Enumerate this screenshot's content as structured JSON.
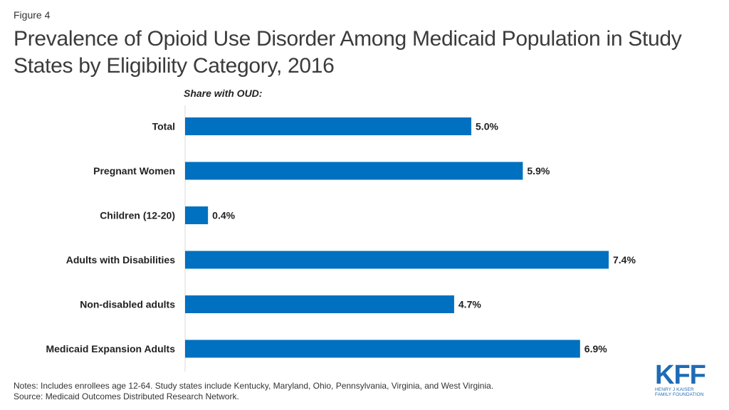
{
  "figure_label": "Figure 4",
  "title": "Prevalence of Opioid Use Disorder Among Medicaid Population in Study States by Eligibility Category, 2016",
  "chart_data": {
    "type": "bar",
    "orientation": "horizontal",
    "subtitle": "Share with OUD:",
    "categories": [
      "Total",
      "Pregnant Women",
      "Children (12-20)",
      "Adults with Disabilities",
      "Non-disabled adults",
      "Medicaid Expansion Adults"
    ],
    "values": [
      5.0,
      5.9,
      0.4,
      7.4,
      4.7,
      6.9
    ],
    "value_labels": [
      "5.0%",
      "5.9%",
      "0.4%",
      "7.4%",
      "4.7%",
      "6.9%"
    ],
    "xlim": [
      0,
      8
    ],
    "unit": "%",
    "bar_color": "#0070c0",
    "grid": false
  },
  "notes": [
    "Notes: Includes enrollees age 12-64. Study states include Kentucky, Maryland, Ohio, Pennsylvania,  Virginia, and West Virginia.",
    "Source: Medicaid Outcomes Distributed Research Network."
  ],
  "logo": {
    "letters": "KFF",
    "line1": "HENRY J KAISER",
    "line2": "FAMILY FOUNDATION",
    "color": "#1f6bb5"
  }
}
